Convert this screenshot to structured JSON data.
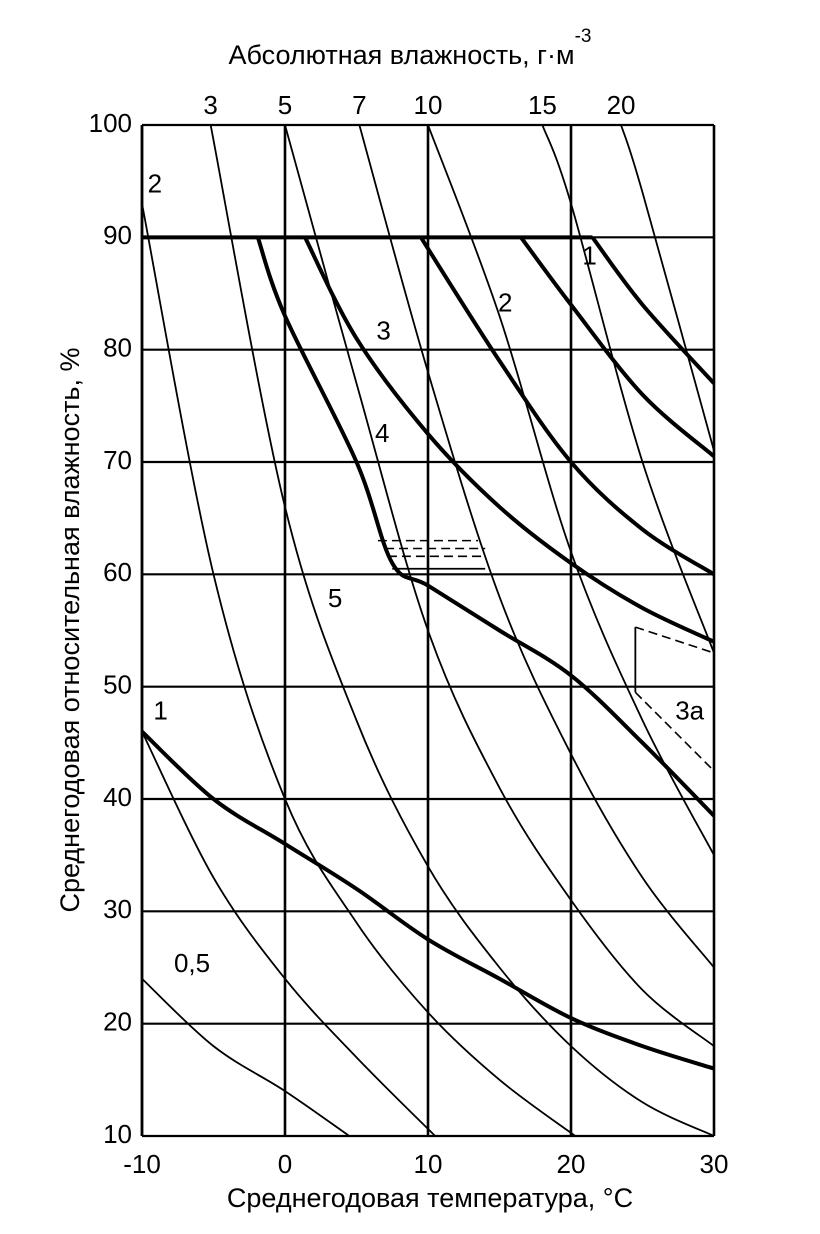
{
  "chart_data": {
    "type": "line",
    "top_axis_label": "Абсолютная влажность, г·м",
    "top_axis_label_sup": "-3",
    "y_axis_label": "Среднегодовая относительная влажность, %",
    "x_axis_label": "Среднегодовая температура, °С",
    "xlim": [
      -10,
      30
    ],
    "xticks": [
      -10,
      0,
      10,
      20,
      30
    ],
    "ylim": [
      10,
      100
    ],
    "yticks": [
      10,
      20,
      30,
      40,
      50,
      60,
      70,
      80,
      90,
      100
    ],
    "grid": true,
    "color": "#000000",
    "series": [
      {
        "name": "3",
        "style": "thin",
        "x": [
          -5.2,
          0,
          5,
          10,
          15,
          20,
          25,
          30
        ],
        "values": [
          100,
          66,
          47,
          34,
          25,
          18,
          13,
          10
        ]
      },
      {
        "name": "5",
        "style": "thin",
        "x": [
          0,
          5,
          10,
          15,
          20,
          25,
          30
        ],
        "values": [
          100,
          77,
          55,
          41,
          31,
          23,
          18
        ]
      },
      {
        "name": "7",
        "style": "thin",
        "x": [
          5.2,
          10,
          15,
          20,
          25,
          30
        ],
        "values": [
          100,
          78,
          58,
          44,
          33,
          25
        ]
      },
      {
        "name": "10",
        "style": "thin",
        "x": [
          10,
          15,
          20,
          25,
          30
        ],
        "values": [
          100,
          83,
          62,
          47,
          35
        ]
      },
      {
        "name": "15",
        "style": "thin",
        "x": [
          18,
          20,
          25,
          30
        ],
        "values": [
          100,
          93,
          70,
          53
        ]
      },
      {
        "name": "20",
        "style": "thin",
        "x": [
          23.5,
          25,
          30
        ],
        "values": [
          100,
          94,
          71
        ]
      },
      {
        "style": "thin",
        "x": [
          -10,
          -5,
          0,
          4.5
        ],
        "values": [
          24,
          18,
          14,
          10
        ]
      },
      {
        "style": "thin",
        "x": [
          -10,
          -5,
          0,
          5,
          10.5
        ],
        "values": [
          46,
          33,
          24,
          17,
          10
        ]
      },
      {
        "style": "thin",
        "x": [
          -10,
          -5,
          0,
          5,
          10,
          15,
          20.3
        ],
        "values": [
          93,
          60,
          40,
          29,
          21,
          15,
          10
        ]
      },
      {
        "style": "thick",
        "x": [
          -10,
          21.5
        ],
        "values": [
          90,
          90
        ]
      },
      {
        "style": "thick",
        "x": [
          21.5,
          25,
          30
        ],
        "values": [
          90,
          84,
          77
        ]
      },
      {
        "style": "thick",
        "x": [
          16.5,
          20,
          25,
          30
        ],
        "values": [
          90,
          84,
          76,
          70.5
        ]
      },
      {
        "style": "thick",
        "x": [
          9.5,
          15,
          20,
          25,
          30
        ],
        "values": [
          90,
          79,
          70,
          64,
          60
        ]
      },
      {
        "style": "thick",
        "x": [
          1.4,
          5,
          10,
          15,
          20,
          25,
          30
        ],
        "values": [
          90,
          81,
          72.5,
          66,
          61,
          57,
          54
        ]
      },
      {
        "style": "thick",
        "x": [
          -1.9,
          0,
          5,
          7.5,
          10,
          15,
          20,
          25,
          30
        ],
        "values": [
          90,
          83,
          70,
          61,
          59,
          55,
          51,
          45,
          38.5
        ]
      },
      {
        "style": "thick",
        "x": [
          -10,
          -5,
          0,
          5,
          10,
          15,
          20,
          25,
          30
        ],
        "values": [
          46,
          40,
          36,
          32,
          27.5,
          24,
          20.5,
          18,
          16
        ]
      },
      {
        "style": "thin",
        "x": [
          7.5,
          14
        ],
        "values": [
          60.5,
          60.5
        ]
      },
      {
        "style": "dashed",
        "x": [
          6.5,
          13.5
        ],
        "values": [
          63,
          63
        ]
      },
      {
        "style": "dashed",
        "x": [
          7,
          14
        ],
        "values": [
          62.3,
          62.3
        ]
      },
      {
        "style": "dashed",
        "x": [
          7.2,
          14
        ],
        "values": [
          61.6,
          61.6
        ]
      },
      {
        "style": "dashed",
        "x": [
          24.5,
          30
        ],
        "values": [
          55.3,
          53
        ]
      },
      {
        "style": "dashed",
        "x": [
          24.5,
          30
        ],
        "values": [
          49.5,
          42.5
        ]
      },
      {
        "style": "thin",
        "x": [
          24.5,
          24.5
        ],
        "values": [
          55.3,
          49.5
        ]
      }
    ],
    "annotations": [
      {
        "text": "1",
        "x": -8.7,
        "y": 47.7
      },
      {
        "text": "2",
        "x": -9.1,
        "y": 94.6
      },
      {
        "text": "0,5",
        "x": -6.5,
        "y": 25.2
      },
      {
        "text": "1",
        "x": 21.3,
        "y": 88.2
      },
      {
        "text": "2",
        "x": 15.4,
        "y": 84
      },
      {
        "text": "3",
        "x": 6.9,
        "y": 81.5
      },
      {
        "text": "4",
        "x": 6.8,
        "y": 72.4
      },
      {
        "text": "5",
        "x": 3.5,
        "y": 57.7
      },
      {
        "text": "3а",
        "x": 28.3,
        "y": 47.7
      }
    ]
  }
}
